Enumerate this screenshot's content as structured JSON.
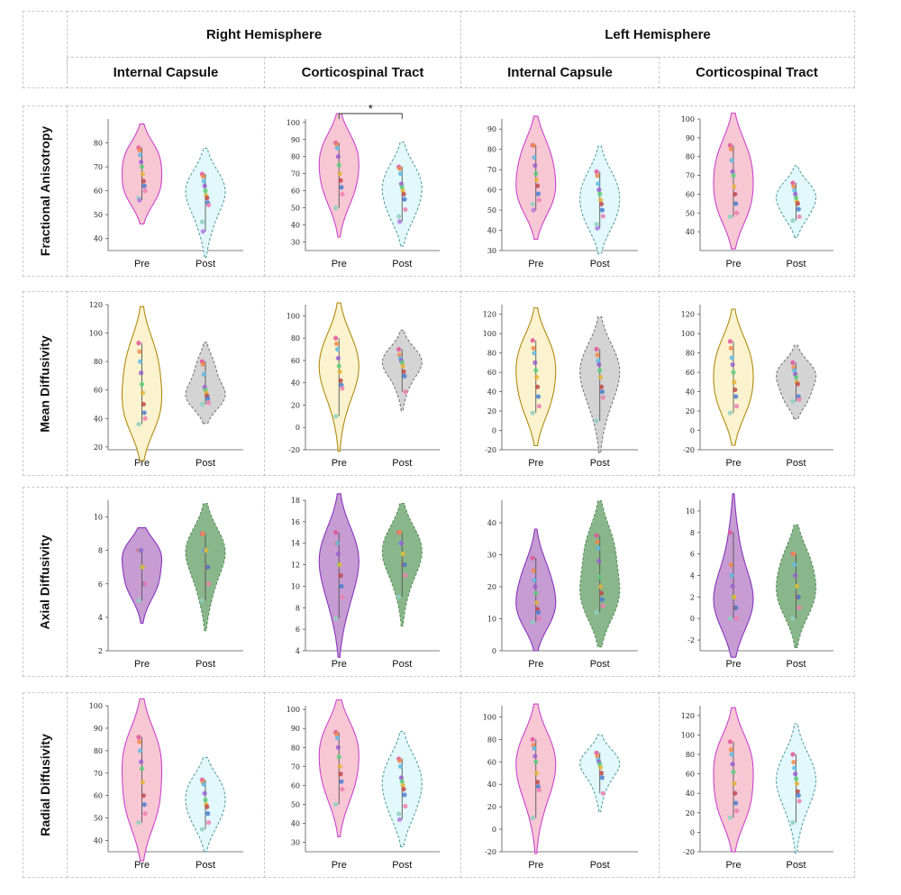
{
  "headers": {
    "right": "Right Hemisphere",
    "left": "Left Hemisphere",
    "cols": [
      "Internal Capsule",
      "Corticospinal Tract",
      "Internal Capsule",
      "Corticospinal Tract"
    ]
  },
  "rows": [
    "Fractional Anisotropy",
    "Mean Diffusivity",
    "Axial Diffusivity",
    "Radial Diffusivity"
  ],
  "colors": {
    "pink_fill": "#f7c7d4",
    "pink_line": "#cc44cc",
    "cyan_fill": "#e2f8fb",
    "cyan_line": "#5aa0a0",
    "yellow_fill": "#fbf3cf",
    "yellow_line": "#b08a10",
    "gray_fill": "#d4d4d4",
    "gray_line": "#777777",
    "purple_fill": "#c69cd2",
    "purple_line": "#8a35bf",
    "green_fill": "#8ab68c",
    "green_line": "#5a8f5c"
  },
  "chart_data": [
    {
      "type": "violin",
      "row": "Fractional Anisotropy",
      "column": "Right Hemisphere / Internal Capsule",
      "categories": [
        "Pre",
        "Post"
      ],
      "ylim": [
        35,
        90
      ],
      "yticks": [
        40,
        50,
        60,
        70,
        80
      ],
      "significance": "",
      "series": [
        {
          "name": "Pre",
          "values": [
            78,
            77,
            75,
            72,
            70,
            67,
            64,
            62,
            60,
            57,
            56
          ]
        },
        {
          "name": "Post",
          "values": [
            67,
            66,
            64,
            62,
            60,
            58,
            57,
            55,
            54,
            47,
            43
          ]
        }
      ]
    },
    {
      "type": "violin",
      "row": "Fractional Anisotropy",
      "column": "Right Hemisphere / Corticospinal Tract",
      "categories": [
        "Pre",
        "Post"
      ],
      "ylim": [
        25,
        102
      ],
      "yticks": [
        30,
        40,
        50,
        60,
        70,
        80,
        90,
        100
      ],
      "significance": "*",
      "series": [
        {
          "name": "Pre",
          "values": [
            88,
            87,
            85,
            80,
            75,
            70,
            66,
            62,
            58,
            50
          ]
        },
        {
          "name": "Post",
          "values": [
            74,
            73,
            70,
            64,
            62,
            60,
            58,
            55,
            49,
            45,
            42
          ]
        }
      ]
    },
    {
      "type": "violin",
      "row": "Fractional Anisotropy",
      "column": "Left Hemisphere / Internal Capsule",
      "categories": [
        "Pre",
        "Post"
      ],
      "ylim": [
        30,
        95
      ],
      "yticks": [
        30,
        40,
        50,
        60,
        70,
        80,
        90
      ],
      "significance": "",
      "series": [
        {
          "name": "Pre",
          "values": [
            82,
            82,
            76,
            72,
            68,
            65,
            62,
            58,
            55,
            53,
            50
          ]
        },
        {
          "name": "Post",
          "values": [
            69,
            67,
            63,
            60,
            58,
            55,
            53,
            50,
            47,
            43,
            41
          ]
        }
      ]
    },
    {
      "type": "violin",
      "row": "Fractional Anisotropy",
      "column": "Left Hemisphere / Corticospinal Tract",
      "categories": [
        "Pre",
        "Post"
      ],
      "ylim": [
        30,
        100
      ],
      "yticks": [
        40,
        50,
        60,
        70,
        80,
        90,
        100
      ],
      "significance": "",
      "series": [
        {
          "name": "Pre",
          "values": [
            86,
            84,
            78,
            72,
            70,
            64,
            60,
            55,
            50,
            48
          ]
        },
        {
          "name": "Post",
          "values": [
            66,
            64,
            62,
            60,
            58,
            56,
            55,
            52,
            48,
            46
          ]
        }
      ]
    },
    {
      "type": "violin",
      "row": "Mean Diffusivity",
      "column": "Right Hemisphere / Internal Capsule",
      "categories": [
        "Pre",
        "Post"
      ],
      "ylim": [
        18,
        120
      ],
      "yticks": [
        20,
        40,
        60,
        80,
        100,
        120
      ],
      "significance": "",
      "series": [
        {
          "name": "Pre",
          "values": [
            93,
            87,
            80,
            72,
            64,
            58,
            50,
            44,
            40,
            36
          ]
        },
        {
          "name": "Post",
          "values": [
            80,
            78,
            71,
            62,
            60,
            58,
            56,
            54,
            51,
            50
          ]
        }
      ]
    },
    {
      "type": "violin",
      "row": "Mean Diffusivity",
      "column": "Right Hemisphere / Corticospinal Tract",
      "categories": [
        "Pre",
        "Post"
      ],
      "ylim": [
        -20,
        110
      ],
      "yticks": [
        -20,
        0,
        20,
        40,
        60,
        80,
        100
      ],
      "significance": "",
      "series": [
        {
          "name": "Pre",
          "values": [
            80,
            75,
            70,
            62,
            55,
            50,
            42,
            38,
            35,
            10
          ]
        },
        {
          "name": "Post",
          "values": [
            70,
            65,
            62,
            60,
            58,
            55,
            50,
            46,
            32
          ]
        }
      ]
    },
    {
      "type": "violin",
      "row": "Mean Diffusivity",
      "column": "Left Hemisphere / Internal Capsule",
      "categories": [
        "Pre",
        "Post"
      ],
      "ylim": [
        -20,
        130
      ],
      "yticks": [
        -20,
        0,
        20,
        40,
        60,
        80,
        100,
        120
      ],
      "significance": "",
      "series": [
        {
          "name": "Pre",
          "values": [
            93,
            85,
            80,
            70,
            62,
            55,
            45,
            35,
            25,
            18
          ]
        },
        {
          "name": "Post",
          "values": [
            84,
            78,
            72,
            68,
            62,
            55,
            45,
            40,
            34,
            10
          ]
        }
      ]
    },
    {
      "type": "violin",
      "row": "Mean Diffusivity",
      "column": "Left Hemisphere / Corticospinal Tract",
      "categories": [
        "Pre",
        "Post"
      ],
      "ylim": [
        -20,
        130
      ],
      "yticks": [
        -20,
        0,
        20,
        40,
        60,
        80,
        100,
        120
      ],
      "significance": "",
      "series": [
        {
          "name": "Pre",
          "values": [
            92,
            85,
            75,
            68,
            60,
            50,
            42,
            35,
            25,
            18
          ]
        },
        {
          "name": "Post",
          "values": [
            70,
            65,
            62,
            58,
            55,
            50,
            48,
            35,
            32,
            30
          ]
        }
      ]
    },
    {
      "type": "violin",
      "row": "Axial Diffusivity",
      "column": "Right Hemisphere / Internal Capsule",
      "categories": [
        "Pre",
        "Post"
      ],
      "ylim": [
        2,
        11
      ],
      "yticks": [
        2,
        4,
        6,
        8,
        10
      ],
      "significance": "",
      "series": [
        {
          "name": "Pre",
          "values": [
            8,
            8,
            8,
            8,
            7,
            7,
            6,
            6,
            6,
            5
          ]
        },
        {
          "name": "Post",
          "values": [
            9,
            9,
            8,
            8,
            8,
            8,
            7,
            7,
            6,
            5
          ]
        }
      ]
    },
    {
      "type": "violin",
      "row": "Axial Diffusivity",
      "column": "Right Hemisphere / Corticospinal Tract",
      "categories": [
        "Pre",
        "Post"
      ],
      "ylim": [
        4,
        18
      ],
      "yticks": [
        4,
        6,
        8,
        10,
        12,
        14,
        16,
        18
      ],
      "significance": "",
      "series": [
        {
          "name": "Pre",
          "values": [
            15,
            14,
            14,
            13,
            12,
            12,
            11,
            10,
            9,
            7
          ]
        },
        {
          "name": "Post",
          "values": [
            15,
            15,
            14,
            14,
            13,
            13,
            12,
            12,
            11,
            9
          ]
        }
      ]
    },
    {
      "type": "violin",
      "row": "Axial Diffusivity",
      "column": "Left Hemisphere / Internal Capsule",
      "categories": [
        "Pre",
        "Post"
      ],
      "ylim": [
        0,
        47
      ],
      "yticks": [
        0,
        10,
        20,
        30,
        40
      ],
      "significance": "",
      "series": [
        {
          "name": "Pre",
          "values": [
            29,
            25,
            22,
            20,
            18,
            15,
            13,
            12,
            10,
            9
          ]
        },
        {
          "name": "Post",
          "values": [
            36,
            34,
            32,
            28,
            23,
            20,
            18,
            16,
            14,
            12
          ]
        }
      ]
    },
    {
      "type": "violin",
      "row": "Axial Diffusivity",
      "column": "Left Hemisphere / Corticospinal Tract",
      "categories": [
        "Pre",
        "Post"
      ],
      "ylim": [
        -3,
        11
      ],
      "yticks": [
        -2,
        0,
        2,
        4,
        6,
        8,
        10
      ],
      "significance": "",
      "series": [
        {
          "name": "Pre",
          "values": [
            8,
            5,
            4,
            3,
            2,
            2,
            1,
            1,
            0,
            0
          ]
        },
        {
          "name": "Post",
          "values": [
            6,
            6,
            5,
            4,
            3,
            3,
            2,
            2,
            1,
            0
          ]
        }
      ]
    },
    {
      "type": "violin",
      "row": "Radial Diffusivity",
      "column": "Right Hemisphere / Internal Capsule",
      "categories": [
        "Pre",
        "Post"
      ],
      "ylim": [
        35,
        100
      ],
      "yticks": [
        40,
        50,
        60,
        70,
        80,
        90,
        100
      ],
      "significance": "",
      "series": [
        {
          "name": "Pre",
          "values": [
            86,
            84,
            80,
            75,
            72,
            66,
            60,
            56,
            52,
            48
          ]
        },
        {
          "name": "Post",
          "values": [
            67,
            66,
            65,
            61,
            58,
            56,
            55,
            52,
            48,
            45
          ]
        }
      ]
    },
    {
      "type": "violin",
      "row": "Radial Diffusivity",
      "column": "Right Hemisphere / Corticospinal Tract",
      "categories": [
        "Pre",
        "Post"
      ],
      "ylim": [
        25,
        102
      ],
      "yticks": [
        30,
        40,
        50,
        60,
        70,
        80,
        90,
        100
      ],
      "significance": "",
      "series": [
        {
          "name": "Pre",
          "values": [
            88,
            87,
            85,
            80,
            75,
            70,
            66,
            62,
            58,
            50
          ]
        },
        {
          "name": "Post",
          "values": [
            74,
            73,
            70,
            64,
            62,
            60,
            58,
            55,
            49,
            45,
            42
          ]
        }
      ]
    },
    {
      "type": "violin",
      "row": "Radial Diffusivity",
      "column": "Left Hemisphere / Internal Capsule",
      "categories": [
        "Pre",
        "Post"
      ],
      "ylim": [
        -20,
        110
      ],
      "yticks": [
        -20,
        0,
        20,
        40,
        60,
        80,
        100
      ],
      "significance": "",
      "series": [
        {
          "name": "Pre",
          "values": [
            80,
            75,
            72,
            65,
            60,
            50,
            42,
            38,
            35,
            10
          ]
        },
        {
          "name": "Post",
          "values": [
            68,
            65,
            62,
            60,
            58,
            55,
            50,
            46,
            32
          ]
        }
      ]
    },
    {
      "type": "violin",
      "row": "Radial Diffusivity",
      "column": "Left Hemisphere / Corticospinal Tract",
      "categories": [
        "Pre",
        "Post"
      ],
      "ylim": [
        -20,
        130
      ],
      "yticks": [
        -20,
        0,
        20,
        40,
        60,
        80,
        100,
        120
      ],
      "significance": "",
      "series": [
        {
          "name": "Pre",
          "values": [
            93,
            85,
            80,
            70,
            62,
            50,
            40,
            30,
            22,
            15
          ]
        },
        {
          "name": "Post",
          "values": [
            80,
            72,
            66,
            60,
            55,
            50,
            42,
            38,
            32,
            10
          ]
        }
      ]
    }
  ]
}
